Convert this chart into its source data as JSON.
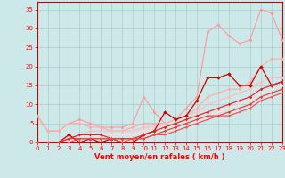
{
  "xlabel": "Vent moyen/en rafales ( km/h )",
  "bg_color": "#cce8e8",
  "grid_color": "#aacccc",
  "x_ticks": [
    0,
    1,
    2,
    3,
    4,
    5,
    6,
    7,
    8,
    9,
    10,
    11,
    12,
    13,
    14,
    15,
    16,
    17,
    18,
    19,
    20,
    21,
    22,
    23
  ],
  "y_ticks": [
    0,
    5,
    10,
    15,
    20,
    25,
    30,
    35
  ],
  "ylim": [
    0,
    37
  ],
  "xlim": [
    0,
    23
  ],
  "series": [
    {
      "x": [
        0,
        1,
        2,
        3,
        4,
        5,
        6,
        7,
        8,
        9,
        10,
        11,
        12,
        13,
        14,
        15,
        16,
        17,
        18,
        19,
        20,
        21,
        22,
        23
      ],
      "y": [
        7,
        3,
        3,
        5,
        6,
        5,
        4,
        4,
        4,
        5,
        12,
        8,
        5,
        6,
        9,
        12,
        29,
        31,
        28,
        26,
        27,
        35,
        34,
        27
      ],
      "color": "#ff9999",
      "lw": 0.8,
      "marker": "D",
      "ms": 2.0
    },
    {
      "x": [
        0,
        1,
        2,
        3,
        4,
        5,
        6,
        7,
        8,
        9,
        10,
        11,
        12,
        13,
        14,
        15,
        16,
        17,
        18,
        19,
        20,
        21,
        22,
        23
      ],
      "y": [
        7,
        3,
        3,
        5,
        5,
        4,
        4,
        3,
        3,
        4,
        5,
        5,
        5,
        6,
        7,
        9,
        12,
        13,
        14,
        14,
        16,
        20,
        22,
        22
      ],
      "color": "#ffaaaa",
      "lw": 0.8,
      "marker": "D",
      "ms": 2.0
    },
    {
      "x": [
        0,
        1,
        2,
        3,
        4,
        5,
        6,
        7,
        8,
        9,
        10,
        11,
        12,
        13,
        14,
        15,
        16,
        17,
        18,
        19,
        20,
        21,
        22,
        23
      ],
      "y": [
        0,
        0,
        0,
        1,
        2,
        3,
        3,
        3,
        3,
        3,
        4,
        4,
        5,
        6,
        7,
        8,
        10,
        11,
        12,
        13,
        14,
        16,
        17,
        17
      ],
      "color": "#ffbbbb",
      "lw": 0.8,
      "marker": "D",
      "ms": 1.8
    },
    {
      "x": [
        0,
        1,
        2,
        3,
        4,
        5,
        6,
        7,
        8,
        9,
        10,
        11,
        12,
        13,
        14,
        15,
        16,
        17,
        18,
        19,
        20,
        21,
        22,
        23
      ],
      "y": [
        0,
        0,
        0,
        1,
        2,
        2,
        2,
        2,
        2,
        3,
        3,
        4,
        4,
        5,
        6,
        7,
        8,
        9,
        10,
        11,
        12,
        14,
        15,
        16
      ],
      "color": "#ffcccc",
      "lw": 0.8,
      "marker": "D",
      "ms": 1.6
    },
    {
      "x": [
        0,
        1,
        2,
        3,
        4,
        5,
        6,
        7,
        8,
        9,
        10,
        11,
        12,
        13,
        14,
        15,
        16,
        17,
        18,
        19,
        20,
        21,
        22,
        23
      ],
      "y": [
        0,
        0,
        0,
        0,
        1,
        1,
        2,
        2,
        2,
        2,
        3,
        3,
        4,
        4,
        5,
        6,
        7,
        8,
        9,
        10,
        11,
        13,
        14,
        15
      ],
      "color": "#ffdddd",
      "lw": 0.8,
      "marker": "D",
      "ms": 1.4
    },
    {
      "x": [
        0,
        1,
        2,
        3,
        4,
        5,
        6,
        7,
        8,
        9,
        10,
        11,
        12,
        13,
        14,
        15,
        16,
        17,
        18,
        19,
        20,
        21,
        22,
        23
      ],
      "y": [
        0,
        0,
        0,
        2,
        0,
        1,
        0,
        1,
        0,
        0,
        2,
        3,
        8,
        6,
        7,
        11,
        17,
        17,
        18,
        15,
        15,
        20,
        15,
        16
      ],
      "color": "#cc0000",
      "lw": 0.9,
      "marker": "D",
      "ms": 2.2
    },
    {
      "x": [
        0,
        1,
        2,
        3,
        4,
        5,
        6,
        7,
        8,
        9,
        10,
        11,
        12,
        13,
        14,
        15,
        16,
        17,
        18,
        19,
        20,
        21,
        22,
        23
      ],
      "y": [
        0,
        0,
        0,
        1,
        2,
        2,
        2,
        1,
        1,
        1,
        2,
        3,
        4,
        5,
        6,
        7,
        8,
        9,
        10,
        11,
        12,
        14,
        15,
        16
      ],
      "color": "#dd2222",
      "lw": 0.8,
      "marker": "D",
      "ms": 1.8
    },
    {
      "x": [
        0,
        1,
        2,
        3,
        4,
        5,
        6,
        7,
        8,
        9,
        10,
        11,
        12,
        13,
        14,
        15,
        16,
        17,
        18,
        19,
        20,
        21,
        22,
        23
      ],
      "y": [
        0,
        0,
        0,
        1,
        1,
        1,
        1,
        1,
        1,
        1,
        1,
        2,
        3,
        4,
        5,
        6,
        7,
        7,
        8,
        9,
        10,
        12,
        13,
        14
      ],
      "color": "#ee3333",
      "lw": 0.8,
      "marker": "D",
      "ms": 1.6
    },
    {
      "x": [
        0,
        1,
        2,
        3,
        4,
        5,
        6,
        7,
        8,
        9,
        10,
        11,
        12,
        13,
        14,
        15,
        16,
        17,
        18,
        19,
        20,
        21,
        22,
        23
      ],
      "y": [
        0,
        0,
        0,
        0,
        1,
        1,
        1,
        1,
        0,
        1,
        1,
        2,
        2,
        3,
        4,
        5,
        6,
        7,
        7,
        8,
        9,
        11,
        12,
        13
      ],
      "color": "#ff4444",
      "lw": 0.8,
      "marker": "D",
      "ms": 1.4
    }
  ]
}
